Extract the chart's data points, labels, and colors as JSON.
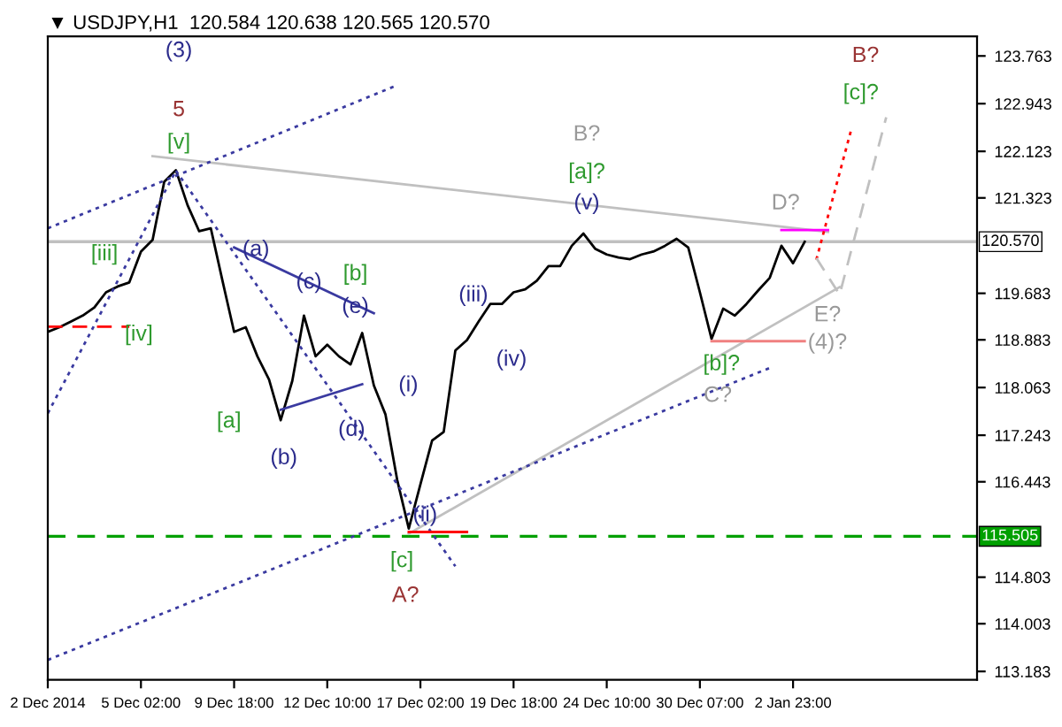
{
  "chart_data": {
    "type": "line",
    "title": "▼ USDJPY,H1  120.584 120.638 120.565 120.570",
    "categories": [
      "2 Dec 2014",
      null,
      null,
      null,
      null,
      null,
      null,
      null,
      "5 Dec 02:00",
      null,
      null,
      null,
      null,
      null,
      null,
      null,
      "9 Dec 18:00",
      null,
      null,
      null,
      null,
      null,
      null,
      null,
      "12 Dec 10:00",
      null,
      null,
      null,
      null,
      null,
      null,
      null,
      "17 Dec 02:00",
      null,
      null,
      null,
      null,
      null,
      null,
      null,
      "19 Dec 18:00",
      null,
      null,
      null,
      null,
      null,
      null,
      null,
      "24 Dec 10:00",
      null,
      null,
      null,
      null,
      null,
      null,
      null,
      "30 Dec 07:00",
      null,
      null,
      null,
      null,
      null,
      null,
      null,
      "2 Jan 23:00",
      null,
      null,
      null,
      null,
      null,
      null,
      null,
      null,
      null,
      null,
      null,
      null,
      null,
      null,
      null
    ],
    "ylim": [
      113.04,
      124.1
    ],
    "yticks": [
      123.763,
      122.943,
      122.123,
      121.323,
      119.683,
      118.883,
      118.063,
      117.243,
      116.443,
      114.803,
      114.003,
      113.183
    ],
    "grid": false,
    "series": [
      {
        "color": "#000000",
        "line_style": "solid",
        "values": [
          119.02,
          119.1,
          119.2,
          119.3,
          119.44,
          119.7,
          119.8,
          119.87,
          120.4,
          120.6,
          121.6,
          121.8,
          121.2,
          120.75,
          120.8,
          119.9,
          119.02,
          119.1,
          118.6,
          118.2,
          117.5,
          118.18,
          119.3,
          118.6,
          118.8,
          118.6,
          118.46,
          119.0,
          118.1,
          117.6,
          116.48,
          115.64,
          116.4,
          117.15,
          117.3,
          118.7,
          118.88,
          119.2,
          119.5,
          119.5,
          119.7,
          119.75,
          119.9,
          120.15,
          120.15,
          120.5,
          120.71,
          120.45,
          120.35,
          120.3,
          120.27,
          120.35,
          120.4,
          120.5,
          120.62,
          120.47,
          119.7,
          118.9,
          119.42,
          119.3,
          119.5,
          119.73,
          119.95,
          120.5,
          120.2,
          120.57,
          null,
          null,
          null,
          null,
          null,
          null,
          null,
          null,
          null,
          null,
          null,
          null,
          null,
          null
        ]
      },
      {
        "color": "#c0c0c0",
        "line_style": "solid",
        "values": [
          null,
          null,
          null,
          null,
          null,
          null,
          null,
          null,
          null,
          122.04,
          null,
          null,
          null,
          null,
          null,
          null,
          null,
          null,
          null,
          null,
          null,
          null,
          null,
          null,
          null,
          null,
          null,
          null,
          null,
          null,
          null,
          null,
          null,
          null,
          null,
          null,
          null,
          null,
          null,
          null,
          null,
          null,
          null,
          null,
          null,
          null,
          null,
          null,
          null,
          null,
          null,
          null,
          null,
          null,
          null,
          null,
          null,
          null,
          null,
          null,
          null,
          null,
          null,
          null,
          null,
          null,
          null,
          120.74,
          null,
          null,
          null,
          null,
          null,
          null,
          null,
          null,
          null,
          null,
          null,
          null
        ]
      },
      {
        "color": "#c0c0c0",
        "line_style": "solid",
        "values": [
          null,
          null,
          null,
          null,
          null,
          null,
          null,
          null,
          null,
          null,
          null,
          null,
          null,
          null,
          null,
          null,
          null,
          null,
          null,
          null,
          null,
          null,
          null,
          null,
          null,
          null,
          null,
          null,
          null,
          null,
          null,
          115.55,
          null,
          null,
          null,
          null,
          null,
          null,
          null,
          null,
          null,
          null,
          null,
          null,
          null,
          null,
          null,
          null,
          null,
          null,
          null,
          null,
          null,
          null,
          null,
          null,
          null,
          null,
          null,
          null,
          null,
          null,
          null,
          null,
          null,
          null,
          null,
          null,
          119.79,
          null,
          null,
          null,
          null,
          null,
          null,
          null,
          null,
          null,
          null,
          null
        ]
      },
      {
        "color": "#3a3aa0",
        "line_style": "dotted",
        "values": [
          113.38,
          null,
          null,
          null,
          null,
          null,
          null,
          null,
          null,
          null,
          null,
          null,
          null,
          null,
          null,
          null,
          null,
          null,
          null,
          null,
          null,
          null,
          null,
          null,
          null,
          null,
          null,
          null,
          null,
          null,
          null,
          null,
          null,
          null,
          null,
          null,
          null,
          null,
          null,
          null,
          null,
          null,
          null,
          null,
          null,
          null,
          null,
          null,
          null,
          null,
          null,
          null,
          null,
          null,
          null,
          null,
          null,
          null,
          null,
          null,
          null,
          null,
          118.4,
          null,
          null,
          null,
          null,
          null,
          null,
          null,
          null,
          null,
          null,
          null,
          null,
          null,
          null,
          null,
          null,
          null
        ]
      },
      {
        "color": "#3a3aa0",
        "line_style": "dotted",
        "values": [
          120.8,
          null,
          null,
          null,
          null,
          null,
          null,
          null,
          null,
          null,
          null,
          null,
          null,
          null,
          null,
          null,
          null,
          null,
          null,
          null,
          null,
          null,
          null,
          null,
          null,
          null,
          null,
          null,
          null,
          null,
          123.26,
          null,
          null,
          null,
          null,
          null,
          null,
          null,
          null,
          null,
          null,
          null,
          null,
          null,
          null,
          null,
          null,
          null,
          null,
          null,
          null,
          null,
          null,
          null,
          null,
          null,
          null,
          null,
          null,
          null,
          null,
          null,
          null,
          null,
          null,
          null,
          null,
          null,
          null,
          null,
          null,
          null,
          null,
          null,
          null,
          null,
          null,
          null,
          null,
          null
        ]
      },
      {
        "color": "#3a3aa0",
        "line_style": "dotted",
        "values": [
          null,
          null,
          null,
          null,
          null,
          null,
          null,
          null,
          null,
          null,
          null,
          121.79,
          null,
          null,
          null,
          null,
          null,
          null,
          null,
          null,
          null,
          null,
          null,
          null,
          null,
          null,
          null,
          null,
          null,
          null,
          null,
          null,
          null,
          null,
          null,
          114.99,
          null,
          null,
          null,
          null,
          null,
          null,
          null,
          null,
          null,
          null,
          null,
          null,
          null,
          null,
          null,
          null,
          null,
          null,
          null,
          null,
          null,
          null,
          null,
          null,
          null,
          null,
          null,
          null,
          null,
          null,
          null,
          null,
          null,
          null,
          null,
          null,
          null,
          null,
          null,
          null,
          null,
          null,
          null,
          null
        ]
      },
      {
        "color": "#3a3aa0",
        "line_style": "dotted",
        "values": [
          117.62,
          null,
          null,
          null,
          null,
          null,
          null,
          null,
          null,
          null,
          null,
          121.79,
          null,
          null,
          null,
          null,
          null,
          null,
          null,
          null,
          null,
          null,
          null,
          null,
          null,
          null,
          null,
          null,
          null,
          null,
          null,
          null,
          null,
          null,
          null,
          null,
          null,
          null,
          null,
          null,
          null,
          null,
          null,
          null,
          null,
          null,
          null,
          null,
          null,
          null,
          null,
          null,
          null,
          null,
          null,
          null,
          null,
          null,
          null,
          null,
          null,
          null,
          null,
          null,
          null,
          null,
          null,
          null,
          null,
          null,
          null,
          null,
          null,
          null,
          null,
          null,
          null,
          null,
          null,
          null
        ]
      },
      {
        "color": "#3a3aa0",
        "line_style": "solid",
        "values": [
          null,
          null,
          null,
          null,
          null,
          null,
          null,
          null,
          null,
          null,
          null,
          null,
          null,
          null,
          null,
          null,
          120.47,
          null,
          null,
          null,
          null,
          null,
          null,
          null,
          null,
          null,
          null,
          null,
          119.34,
          null,
          null,
          null,
          null,
          null,
          null,
          null,
          null,
          null,
          null,
          null,
          null,
          null,
          null,
          null,
          null,
          null,
          null,
          null,
          null,
          null,
          null,
          null,
          null,
          null,
          null,
          null,
          null,
          null,
          null,
          null,
          null,
          null,
          null,
          null,
          null,
          null,
          null,
          null,
          null,
          null,
          null,
          null,
          null,
          null,
          null,
          null,
          null,
          null,
          null,
          null
        ]
      },
      {
        "color": "#3a3aa0",
        "line_style": "solid",
        "values": [
          null,
          null,
          null,
          null,
          null,
          null,
          null,
          null,
          null,
          null,
          null,
          null,
          null,
          null,
          null,
          null,
          null,
          null,
          null,
          null,
          117.68,
          null,
          null,
          null,
          null,
          null,
          null,
          118.12,
          null,
          null,
          null,
          null,
          null,
          null,
          null,
          null,
          null,
          null,
          null,
          null,
          null,
          null,
          null,
          null,
          null,
          null,
          null,
          null,
          null,
          null,
          null,
          null,
          null,
          null,
          null,
          null,
          null,
          null,
          null,
          null,
          null,
          null,
          null,
          null,
          null,
          null,
          null,
          null,
          null,
          null,
          null,
          null,
          null,
          null,
          null,
          null,
          null,
          null,
          null,
          null
        ]
      },
      {
        "color": "#ff0000",
        "line_style": "dashed",
        "values": [
          119.11,
          null,
          null,
          null,
          null,
          null,
          null,
          119.11,
          null,
          null,
          null,
          null,
          null,
          null,
          null,
          null,
          null,
          null,
          null,
          null,
          null,
          null,
          null,
          null,
          null,
          null,
          null,
          null,
          null,
          null,
          null,
          null,
          null,
          null,
          null,
          null,
          null,
          null,
          null,
          null,
          null,
          null,
          null,
          null,
          null,
          null,
          null,
          null,
          null,
          null,
          null,
          null,
          null,
          null,
          null,
          null,
          null,
          null,
          null,
          null,
          null,
          null,
          null,
          null,
          null,
          null,
          null,
          null,
          null,
          null,
          null,
          null,
          null,
          null,
          null,
          null,
          null,
          null,
          null,
          null
        ]
      },
      {
        "color": "#ff0000",
        "line_style": "solid",
        "values": [
          null,
          null,
          null,
          null,
          null,
          null,
          null,
          null,
          null,
          null,
          null,
          null,
          null,
          null,
          null,
          null,
          null,
          null,
          null,
          null,
          null,
          null,
          null,
          null,
          null,
          null,
          null,
          null,
          null,
          null,
          null,
          115.58,
          null,
          null,
          null,
          null,
          115.58,
          null,
          null,
          null,
          null,
          null,
          null,
          null,
          null,
          null,
          null,
          null,
          null,
          null,
          null,
          null,
          null,
          null,
          null,
          null,
          null,
          null,
          null,
          null,
          null,
          null,
          null,
          null,
          null,
          null,
          null,
          null,
          null,
          null,
          null,
          null,
          null,
          null,
          null,
          null,
          null,
          null,
          null,
          null
        ]
      },
      {
        "color": "#f08080",
        "line_style": "solid",
        "values": [
          null,
          null,
          null,
          null,
          null,
          null,
          null,
          null,
          null,
          null,
          null,
          null,
          null,
          null,
          null,
          null,
          null,
          null,
          null,
          null,
          null,
          null,
          null,
          null,
          null,
          null,
          null,
          null,
          null,
          null,
          null,
          null,
          null,
          null,
          null,
          null,
          null,
          null,
          null,
          null,
          null,
          null,
          null,
          null,
          null,
          null,
          null,
          null,
          null,
          null,
          null,
          null,
          null,
          null,
          null,
          null,
          null,
          118.86,
          null,
          null,
          null,
          null,
          null,
          null,
          null,
          118.86,
          null,
          null,
          null,
          null,
          null,
          null,
          null,
          null,
          null,
          null,
          null,
          null,
          null,
          null
        ]
      },
      {
        "color": "#ff00ff",
        "line_style": "solid",
        "values": [
          null,
          null,
          null,
          null,
          null,
          null,
          null,
          null,
          null,
          null,
          null,
          null,
          null,
          null,
          null,
          null,
          null,
          null,
          null,
          null,
          null,
          null,
          null,
          null,
          null,
          null,
          null,
          null,
          null,
          null,
          null,
          null,
          null,
          null,
          null,
          null,
          null,
          null,
          null,
          null,
          null,
          null,
          null,
          null,
          null,
          null,
          null,
          null,
          null,
          null,
          null,
          null,
          null,
          null,
          null,
          null,
          null,
          null,
          null,
          null,
          null,
          null,
          null,
          120.77,
          null,
          null,
          null,
          120.77,
          null,
          null,
          null,
          null,
          null,
          null,
          null,
          null,
          null,
          null,
          null,
          null
        ]
      },
      {
        "color": "#ff0000",
        "line_style": "dotted",
        "values": [
          null,
          null,
          null,
          null,
          null,
          null,
          null,
          null,
          null,
          null,
          null,
          null,
          null,
          null,
          null,
          null,
          null,
          null,
          null,
          null,
          null,
          null,
          null,
          null,
          null,
          null,
          null,
          null,
          null,
          null,
          null,
          null,
          null,
          null,
          null,
          null,
          null,
          null,
          null,
          null,
          null,
          null,
          null,
          null,
          null,
          null,
          null,
          null,
          null,
          null,
          null,
          null,
          null,
          null,
          null,
          null,
          null,
          null,
          null,
          null,
          null,
          null,
          null,
          null,
          null,
          null,
          120.26,
          null,
          null,
          122.5,
          null,
          null,
          null,
          null,
          null,
          null,
          null,
          null,
          null,
          null
        ]
      },
      {
        "color": "#c0c0c0",
        "line_style": "dashed",
        "values": [
          null,
          null,
          null,
          null,
          null,
          null,
          null,
          null,
          null,
          null,
          null,
          null,
          null,
          null,
          null,
          null,
          null,
          null,
          null,
          null,
          null,
          null,
          null,
          null,
          null,
          null,
          null,
          null,
          null,
          null,
          null,
          null,
          null,
          null,
          null,
          null,
          null,
          null,
          null,
          null,
          null,
          null,
          null,
          null,
          null,
          null,
          null,
          null,
          null,
          null,
          null,
          null,
          null,
          null,
          null,
          null,
          null,
          null,
          null,
          null,
          null,
          null,
          null,
          null,
          null,
          null,
          120.29,
          null,
          119.66,
          null,
          null,
          null,
          122.71,
          null,
          null,
          null,
          null,
          null,
          null,
          null
        ]
      }
    ],
    "ref_lines": [
      {
        "axis": "y",
        "value": 120.57,
        "label": "120.570",
        "color": "#c0c0c0",
        "line_style": "solid"
      },
      {
        "axis": "y",
        "value": 115.505,
        "label": "115.505",
        "color": "#00a000",
        "line_style": "dashed"
      }
    ],
    "annotations": [
      "(3)",
      "5",
      "[v]",
      "[iii]",
      "[iv]",
      "(a)",
      "(c)",
      "[b]",
      "(e)",
      "[a]",
      "(b)",
      "(d)",
      "(i)",
      "(iii)",
      "(iv)",
      "(ii)",
      "[c]",
      "A?",
      "B?",
      "[a]?",
      "(v)",
      "D?",
      "[b]?",
      "C?",
      "E?",
      "(4)?",
      "B?",
      "[c]?"
    ]
  }
}
